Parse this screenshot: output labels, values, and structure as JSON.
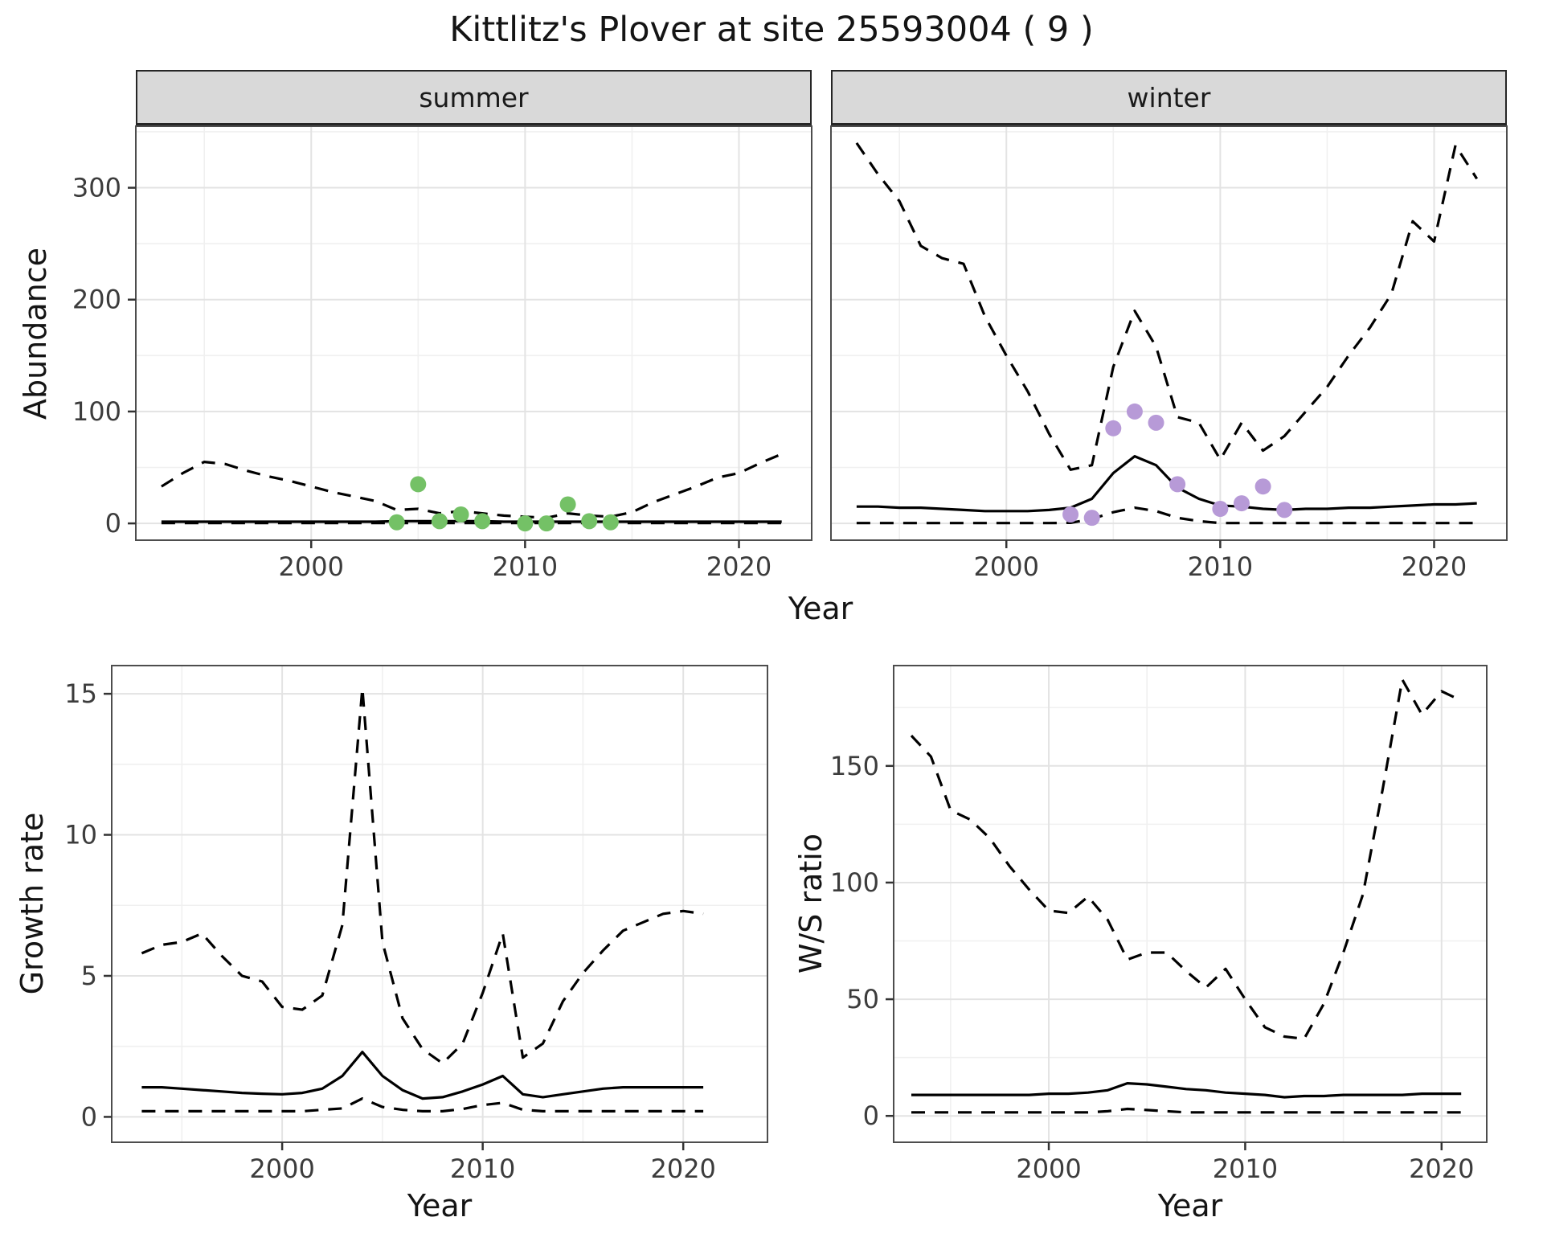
{
  "title": "Kittlitz's Plover at site 25593004 ( 9 )",
  "colors": {
    "summer_points": "#74c166",
    "winter_points": "#b79ad7",
    "line": "#000000",
    "strip_fill": "#d9d9d9",
    "panel_border": "#4d4d4d",
    "grid_major": "#e3e3e3",
    "grid_minor": "#f0f0f0",
    "axis_text": "#3c3c3c",
    "tick_mark": "#333333",
    "background": "#ffffff"
  },
  "chart_data": [
    {
      "id": "abundance-summer",
      "type": "line",
      "facet_label": "summer",
      "xlabel": "Year",
      "ylabel": "Abundance",
      "xlim": [
        1991.8,
        2023.4
      ],
      "ylim": [
        -15,
        355
      ],
      "xticks": [
        2000,
        2010,
        2020
      ],
      "yticks": [
        0,
        100,
        200,
        300
      ],
      "years": [
        1993,
        1994,
        1995,
        1996,
        1997,
        1998,
        1999,
        2000,
        2001,
        2002,
        2003,
        2004,
        2005,
        2006,
        2007,
        2008,
        2009,
        2010,
        2011,
        2012,
        2013,
        2014,
        2015,
        2016,
        2017,
        2018,
        2019,
        2020,
        2021,
        2022
      ],
      "series": [
        {
          "name": "upper-ci",
          "style": "dashed",
          "y": [
            33,
            45,
            55,
            53,
            47,
            42,
            38,
            33,
            28,
            24,
            20,
            12,
            13,
            9,
            11,
            9,
            7,
            6,
            5,
            9,
            7,
            6,
            10,
            19,
            26,
            33,
            41,
            45,
            54,
            62
          ]
        },
        {
          "name": "median",
          "style": "solid",
          "y": [
            1.5,
            1.5,
            1.5,
            1.5,
            1.5,
            1.5,
            1.5,
            1.5,
            1.5,
            1.5,
            1.5,
            2,
            2,
            2,
            2,
            2,
            1.5,
            1.5,
            1.5,
            1.5,
            1.5,
            1.5,
            1.5,
            1.5,
            1.5,
            1.5,
            1.5,
            1.5,
            1.5,
            1.5
          ]
        },
        {
          "name": "lower-ci",
          "style": "dashed",
          "y": [
            0.3,
            0.3,
            0.3,
            0.3,
            0.3,
            0.3,
            0.3,
            0.3,
            0.3,
            0.3,
            0.3,
            0.3,
            0.3,
            0.3,
            0.3,
            0.3,
            0.3,
            0.3,
            0.3,
            0.3,
            0.3,
            0.3,
            0.3,
            0.3,
            0.3,
            0.3,
            0.3,
            0.3,
            0.3,
            0.3
          ]
        }
      ],
      "points": {
        "name": "summer-observation",
        "color": "summer_points",
        "x": [
          2004,
          2005,
          2006,
          2007,
          2008,
          2010,
          2011,
          2012,
          2013,
          2014
        ],
        "y": [
          1,
          35,
          2,
          8,
          2,
          0,
          0,
          17,
          2,
          1
        ]
      }
    },
    {
      "id": "abundance-winter",
      "type": "line",
      "facet_label": "winter",
      "xlabel": "",
      "ylabel": "",
      "xlim": [
        1991.8,
        2023.4
      ],
      "ylim": [
        -15,
        355
      ],
      "xticks": [
        2000,
        2010,
        2020
      ],
      "yticks": [
        0,
        100,
        200,
        300
      ],
      "years": [
        1993,
        1994,
        1995,
        1996,
        1997,
        1998,
        1999,
        2000,
        2001,
        2002,
        2003,
        2004,
        2005,
        2006,
        2007,
        2008,
        2009,
        2010,
        2011,
        2012,
        2013,
        2014,
        2015,
        2016,
        2017,
        2018,
        2019,
        2020,
        2021,
        2022
      ],
      "series": [
        {
          "name": "upper-ci",
          "style": "dashed",
          "y": [
            340,
            312,
            288,
            248,
            237,
            232,
            185,
            150,
            118,
            80,
            48,
            52,
            140,
            190,
            158,
            95,
            90,
            57,
            90,
            65,
            78,
            100,
            122,
            150,
            175,
            205,
            270,
            252,
            338,
            308
          ]
        },
        {
          "name": "median",
          "style": "solid",
          "y": [
            15,
            15,
            14,
            14,
            13,
            12,
            11,
            11,
            11,
            12,
            14,
            22,
            45,
            60,
            52,
            32,
            22,
            16,
            15,
            13,
            12,
            13,
            13,
            14,
            14,
            15,
            16,
            17,
            17,
            18
          ]
        },
        {
          "name": "lower-ci",
          "style": "dashed",
          "y": [
            0.3,
            0.3,
            0.3,
            0.3,
            0.3,
            0.3,
            0.3,
            0.3,
            0.3,
            0.3,
            0.5,
            4,
            10,
            14,
            11,
            5,
            2,
            0.3,
            0.3,
            0.3,
            0.3,
            0.3,
            0.3,
            0.3,
            0.3,
            0.3,
            0.3,
            0.3,
            0.3,
            0.3
          ]
        }
      ],
      "points": {
        "name": "winter-observation",
        "color": "winter_points",
        "x": [
          2003,
          2004,
          2005,
          2006,
          2007,
          2008,
          2010,
          2011,
          2012,
          2013
        ],
        "y": [
          8,
          5,
          85,
          100,
          90,
          35,
          13,
          18,
          33,
          12
        ]
      }
    },
    {
      "id": "growth-rate",
      "type": "line",
      "facet_label": "",
      "xlabel": "Year",
      "ylabel": "Growth rate",
      "xlim": [
        1991.5,
        2024.2
      ],
      "ylim": [
        -0.9,
        16.0
      ],
      "xticks": [
        2000,
        2010,
        2020
      ],
      "yticks": [
        0,
        5,
        10,
        15
      ],
      "years": [
        1993,
        1994,
        1995,
        1996,
        1997,
        1998,
        1999,
        2000,
        2001,
        2002,
        2003,
        2004,
        2005,
        2006,
        2007,
        2008,
        2009,
        2010,
        2011,
        2012,
        2013,
        2014,
        2015,
        2016,
        2017,
        2018,
        2019,
        2020,
        2021
      ],
      "series": [
        {
          "name": "upper-ci",
          "style": "dashed",
          "y": [
            5.8,
            6.1,
            6.2,
            6.5,
            5.7,
            5.0,
            4.8,
            3.9,
            3.8,
            4.3,
            6.8,
            15.2,
            6.2,
            3.5,
            2.4,
            1.9,
            2.6,
            4.4,
            6.5,
            2.1,
            2.6,
            4.1,
            5.1,
            5.9,
            6.6,
            6.9,
            7.2,
            7.3,
            7.2
          ]
        },
        {
          "name": "median",
          "style": "solid",
          "y": [
            1.05,
            1.05,
            1.0,
            0.95,
            0.9,
            0.85,
            0.82,
            0.8,
            0.85,
            1.0,
            1.45,
            2.3,
            1.45,
            0.95,
            0.65,
            0.7,
            0.9,
            1.15,
            1.45,
            0.8,
            0.7,
            0.8,
            0.9,
            1.0,
            1.05,
            1.05,
            1.05,
            1.05,
            1.05
          ]
        },
        {
          "name": "lower-ci",
          "style": "dashed",
          "y": [
            0.2,
            0.2,
            0.2,
            0.2,
            0.2,
            0.2,
            0.2,
            0.2,
            0.2,
            0.25,
            0.3,
            0.65,
            0.35,
            0.25,
            0.2,
            0.2,
            0.28,
            0.42,
            0.5,
            0.25,
            0.2,
            0.2,
            0.2,
            0.2,
            0.2,
            0.2,
            0.2,
            0.2,
            0.2
          ]
        }
      ]
    },
    {
      "id": "ws-ratio",
      "type": "line",
      "facet_label": "",
      "xlabel": "Year",
      "ylabel": "W/S ratio",
      "xlim": [
        1992.1,
        2022.3
      ],
      "ylim": [
        -11.3,
        193
      ],
      "xticks": [
        2000,
        2010,
        2020
      ],
      "yticks": [
        0,
        50,
        100,
        150
      ],
      "years": [
        1993,
        1994,
        1995,
        1996,
        1997,
        1998,
        1999,
        2000,
        2001,
        2002,
        2003,
        2004,
        2005,
        2006,
        2007,
        2008,
        2009,
        2010,
        2011,
        2012,
        2013,
        2014,
        2015,
        2016,
        2017,
        2018,
        2019,
        2020,
        2021
      ],
      "series": [
        {
          "name": "upper-ci",
          "style": "dashed",
          "y": [
            163,
            154,
            131,
            127,
            119,
            107,
            97,
            88,
            87,
            94,
            84,
            67,
            70,
            70,
            62,
            55,
            63,
            50,
            38,
            34,
            33,
            48,
            70,
            95,
            140,
            187,
            172,
            182,
            178
          ]
        },
        {
          "name": "median",
          "style": "solid",
          "y": [
            9,
            9,
            9,
            9,
            9,
            9,
            9,
            9.5,
            9.5,
            10,
            11,
            14,
            13.5,
            12.5,
            11.5,
            11,
            10,
            9.5,
            9,
            8,
            8.5,
            8.5,
            9,
            9,
            9,
            9,
            9.5,
            9.5,
            9.5
          ]
        },
        {
          "name": "lower-ci",
          "style": "dashed",
          "y": [
            1.5,
            1.5,
            1.5,
            1.5,
            1.5,
            1.5,
            1.5,
            1.5,
            1.5,
            1.5,
            2,
            3,
            2.5,
            2,
            1.5,
            1.5,
            1.5,
            1.5,
            1.5,
            1.5,
            1.5,
            1.5,
            1.5,
            1.5,
            1.5,
            1.5,
            1.5,
            1.5,
            1.5
          ]
        }
      ]
    }
  ]
}
